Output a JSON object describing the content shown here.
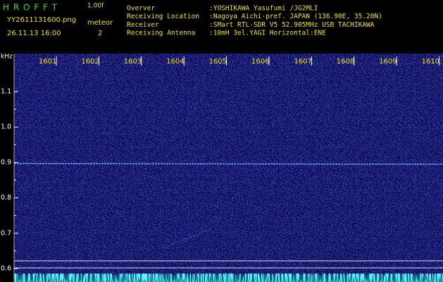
{
  "header": {
    "app": "H R O F F T",
    "version": "1.00f",
    "file": "YY2611131600.png",
    "datetime": "26.11.13 16:00",
    "meteor_label": "meteor",
    "meteor_count": "2",
    "info": [
      {
        "label": "Overver",
        "value": ":YOSHIKAWA Yasufumi /JG2MLI"
      },
      {
        "label": "Receiving Location",
        "value": ":Nagoya Aichi-pref. JAPAN (136.90E, 35.20N)"
      },
      {
        "label": "Receiver",
        "value": ":SMart RTL-SDR V5 52.905MHz USB TACHIKAWA"
      },
      {
        "label": "Receiving Antenna",
        "value": ":10mH 3el.YAGI Horizontal:ENE"
      }
    ]
  },
  "spectrogram": {
    "freq_unit": "kHz",
    "freq_ticks": [
      "1.1",
      "1.0",
      "0.9",
      "0.8",
      "0.7",
      "0.6"
    ],
    "time_ticks": [
      "1601",
      "1602",
      "1603",
      "1604",
      "1605",
      "1606",
      "1607",
      "1608",
      "1609",
      "1610"
    ]
  }
}
